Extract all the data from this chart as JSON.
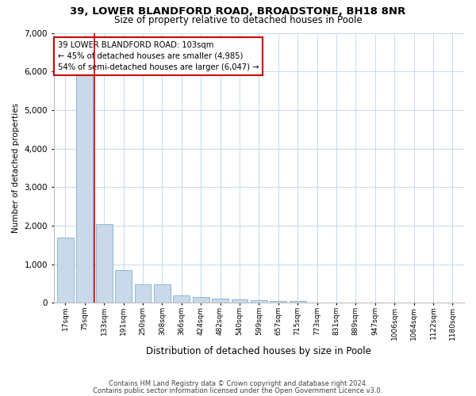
{
  "title_line1": "39, LOWER BLANDFORD ROAD, BROADSTONE, BH18 8NR",
  "title_line2": "Size of property relative to detached houses in Poole",
  "xlabel": "Distribution of detached houses by size in Poole",
  "ylabel": "Number of detached properties",
  "footnote1": "Contains HM Land Registry data © Crown copyright and database right 2024.",
  "footnote2": "Contains public sector information licensed under the Open Government Licence v3.0.",
  "property_label": "39 LOWER BLANDFORD ROAD: 103sqm",
  "annotation_line1": "← 45% of detached houses are smaller (4,985)",
  "annotation_line2": "54% of semi-detached houses are larger (6,047) →",
  "bar_color": "#c9d9ea",
  "bar_edge_color": "#7fafd0",
  "vline_color": "#cc0000",
  "annotation_box_edge": "#cc0000",
  "background_color": "#ffffff",
  "grid_color": "#c8d8e8",
  "categories": [
    "17sqm",
    "75sqm",
    "133sqm",
    "191sqm",
    "250sqm",
    "308sqm",
    "366sqm",
    "424sqm",
    "482sqm",
    "540sqm",
    "599sqm",
    "657sqm",
    "715sqm",
    "773sqm",
    "831sqm",
    "889sqm",
    "947sqm",
    "1006sqm",
    "1064sqm",
    "1122sqm",
    "1180sqm"
  ],
  "values": [
    1700,
    6050,
    2050,
    850,
    490,
    490,
    200,
    145,
    105,
    80,
    60,
    50,
    45,
    8,
    4,
    2,
    1,
    1,
    1,
    0,
    0
  ],
  "ylim": [
    0,
    7000
  ],
  "yticks": [
    0,
    1000,
    2000,
    3000,
    4000,
    5000,
    6000,
    7000
  ],
  "vline_x": 1.5,
  "figsize": [
    6.0,
    5.0
  ],
  "dpi": 100
}
